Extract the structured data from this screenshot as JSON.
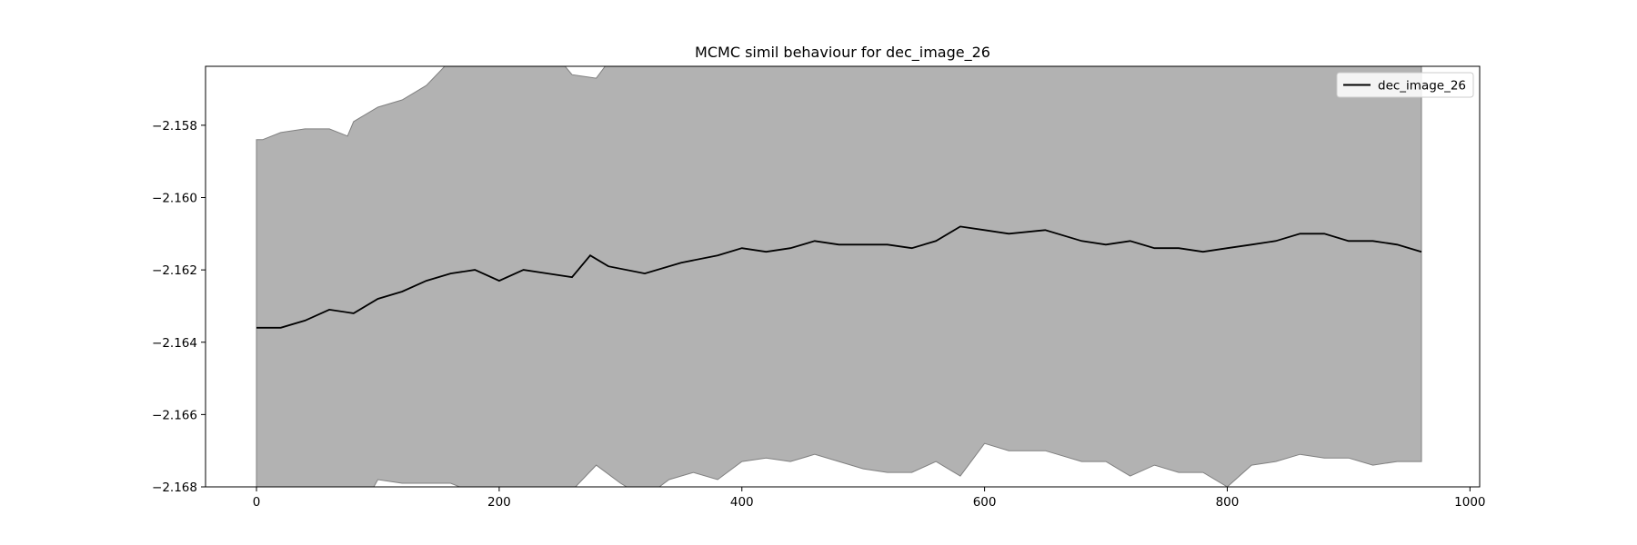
{
  "chart_data": {
    "type": "line",
    "title": "MCMC simil behaviour for dec_image_26",
    "xlabel": "",
    "ylabel": "",
    "xlim": [
      -42,
      1008
    ],
    "ylim": [
      -2.168,
      -2.15637
    ],
    "xticks": [
      0,
      200,
      400,
      600,
      800,
      1000
    ],
    "xtick_labels": [
      "0",
      "200",
      "400",
      "600",
      "800",
      "1000"
    ],
    "yticks": [
      -2.158,
      -2.16,
      -2.162,
      -2.164,
      -2.166,
      -2.168
    ],
    "ytick_labels": [
      "−2.158",
      "−2.160",
      "−2.162",
      "−2.164",
      "−2.166",
      "−2.168"
    ],
    "grid": false,
    "legend": {
      "position": "top-right",
      "entries": [
        "dec_image_26"
      ]
    },
    "colors": {
      "line": "#000000",
      "band_fill": "#b2b2b2",
      "band_edge": "#808080"
    },
    "series": [
      {
        "name": "dec_image_26",
        "kind": "line",
        "x": [
          0,
          20,
          40,
          60,
          80,
          100,
          120,
          140,
          160,
          180,
          200,
          220,
          240,
          260,
          275,
          290,
          320,
          350,
          380,
          400,
          420,
          440,
          460,
          480,
          500,
          520,
          540,
          560,
          580,
          600,
          620,
          650,
          680,
          700,
          720,
          740,
          760,
          780,
          800,
          820,
          840,
          860,
          880,
          900,
          920,
          940,
          960
        ],
        "y": [
          -2.1636,
          -2.1636,
          -2.1634,
          -2.1631,
          -2.1632,
          -2.1628,
          -2.1626,
          -2.1623,
          -2.1621,
          -2.162,
          -2.1623,
          -2.162,
          -2.1621,
          -2.1622,
          -2.1616,
          -2.1619,
          -2.1621,
          -2.1618,
          -2.1616,
          -2.1614,
          -2.1615,
          -2.1614,
          -2.1612,
          -2.1613,
          -2.1613,
          -2.1613,
          -2.1614,
          -2.1612,
          -2.1608,
          -2.1609,
          -2.161,
          -2.1609,
          -2.1612,
          -2.1613,
          -2.1612,
          -2.1614,
          -2.1614,
          -2.1615,
          -2.1614,
          -2.1613,
          -2.1612,
          -2.161,
          -2.161,
          -2.1612,
          -2.1612,
          -2.1613,
          -2.1615
        ]
      },
      {
        "name": "",
        "kind": "band",
        "x": [
          0,
          5,
          20,
          40,
          60,
          75,
          80,
          90,
          100,
          120,
          140,
          160,
          175,
          180,
          200,
          220,
          240,
          260,
          280,
          300,
          320,
          340,
          360,
          380,
          400,
          420,
          440,
          460,
          480,
          500,
          520,
          540,
          560,
          580,
          600,
          620,
          650,
          680,
          700,
          720,
          740,
          760,
          780,
          800,
          820,
          840,
          860,
          880,
          900,
          920,
          940,
          960
        ],
        "upper": [
          -2.1584,
          -2.1584,
          -2.1582,
          -2.1581,
          -2.1581,
          -2.1583,
          -2.1579,
          -2.1577,
          -2.1575,
          -2.1573,
          -2.1569,
          -2.1562,
          -2.156,
          -2.1555,
          -2.1548,
          -2.1548,
          -2.1558,
          -2.1566,
          -2.1567,
          -2.1558,
          -2.1563,
          -2.1555,
          -2.155,
          -2.1548,
          -2.1545,
          -2.1545,
          -2.1545,
          -2.1545,
          -2.1545,
          -2.1545,
          -2.1545,
          -2.1545,
          -2.1545,
          -2.1545,
          -2.1545,
          -2.1545,
          -2.1545,
          -2.1545,
          -2.1545,
          -2.1545,
          -2.1545,
          -2.1545,
          -2.1545,
          -2.1545,
          -2.1545,
          -2.1545,
          -2.1545,
          -2.1545,
          -2.1545,
          -2.1545,
          -2.1545,
          -2.1545
        ],
        "lower": [
          -2.169,
          -2.169,
          -2.169,
          -2.169,
          -2.169,
          -2.1688,
          -2.1688,
          -2.1684,
          -2.1678,
          -2.1679,
          -2.1679,
          -2.1679,
          -2.1681,
          -2.1681,
          -2.1683,
          -2.1681,
          -2.168,
          -2.1681,
          -2.1674,
          -2.1679,
          -2.1683,
          -2.1678,
          -2.1676,
          -2.1678,
          -2.1673,
          -2.1672,
          -2.1673,
          -2.1671,
          -2.1673,
          -2.1675,
          -2.1676,
          -2.1676,
          -2.1673,
          -2.1677,
          -2.1668,
          -2.167,
          -2.167,
          -2.1673,
          -2.1673,
          -2.1677,
          -2.1674,
          -2.1676,
          -2.1676,
          -2.168,
          -2.1674,
          -2.1673,
          -2.1671,
          -2.1672,
          -2.1672,
          -2.1674,
          -2.1673,
          -2.1673
        ]
      }
    ]
  }
}
